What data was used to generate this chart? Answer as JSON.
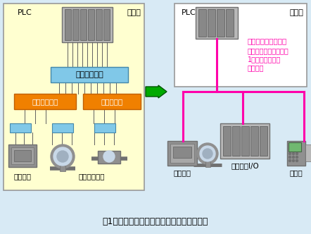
{
  "bg_color": "#d8eaf5",
  "left_panel_color": "#ffffd0",
  "right_panel_color": "#ffffff",
  "blue_box_color": "#80c8e8",
  "orange_box_color": "#f08000",
  "pink_line_color": "#ff00aa",
  "green_arrow_color": "#00aa00",
  "title": "図1　フィールドバス採用による省配線の例",
  "annotation_line1": "フィールドバス採用",
  "annotation_line2": "数百、数千のデータが",
  "annotation_line3": "1本のケーブルで",
  "annotation_line4": "伝送可能",
  "annotation_color": "#ff00aa",
  "left_labels": [
    "ドライブ",
    "各種現場機器"
  ],
  "right_labels": [
    "ドライブ",
    "リモートI/O",
    "分析器"
  ],
  "plc_label": "PLC",
  "seigyo_label": "制御盤",
  "wire_color": "#606060",
  "gray_dark": "#707070",
  "gray_mid": "#909090",
  "gray_light": "#b8b8b8",
  "gray_module": "#888888"
}
